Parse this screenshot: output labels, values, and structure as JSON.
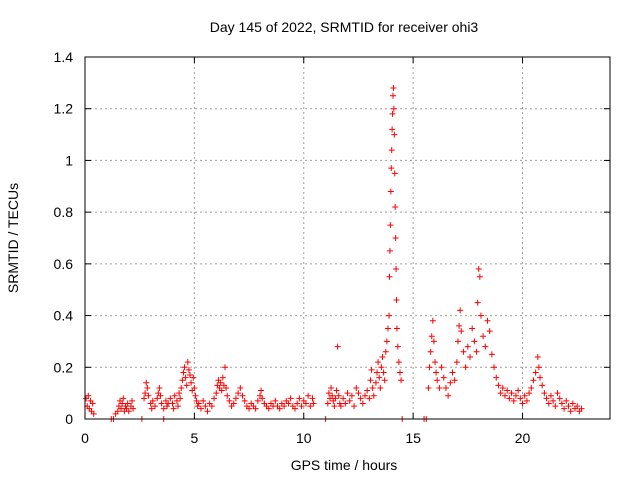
{
  "chart_data": {
    "type": "scatter",
    "title": "Day 145 of 2022, SRMTID for receiver ohi3",
    "xlabel": "GPS time / hours",
    "ylabel": "SRMTID / TECUs",
    "xlim": [
      0,
      24
    ],
    "ylim": [
      0,
      1.4
    ],
    "x_ticks": [
      0,
      5,
      10,
      15,
      20
    ],
    "x_tick_labels": [
      "0",
      "5",
      "10",
      "15",
      "20"
    ],
    "y_ticks": [
      0,
      0.2,
      0.4,
      0.6,
      0.8,
      1.0,
      1.2,
      1.4
    ],
    "y_tick_labels": [
      "0",
      "0.2",
      "0.4",
      "0.6",
      "0.8",
      "1",
      "1.2",
      "1.4"
    ],
    "grid": true,
    "marker": "+",
    "series": [
      {
        "name": "SRMTID",
        "color": "#ff0000",
        "points": [
          [
            0.05,
            0.08
          ],
          [
            0.1,
            0.05
          ],
          [
            0.15,
            0.09
          ],
          [
            0.2,
            0.04
          ],
          [
            0.25,
            0.07
          ],
          [
            0.3,
            0.03
          ],
          [
            0.35,
            0.06
          ],
          [
            0.4,
            0.02
          ],
          [
            1.2,
            0.0
          ],
          [
            1.3,
            0.0
          ],
          [
            1.4,
            0.02
          ],
          [
            1.5,
            0.03
          ],
          [
            1.55,
            0.05
          ],
          [
            1.6,
            0.07
          ],
          [
            1.65,
            0.04
          ],
          [
            1.7,
            0.06
          ],
          [
            1.75,
            0.08
          ],
          [
            1.8,
            0.03
          ],
          [
            1.85,
            0.05
          ],
          [
            1.9,
            0.04
          ],
          [
            1.95,
            0.06
          ],
          [
            2.0,
            0.03
          ],
          [
            2.1,
            0.05
          ],
          [
            2.15,
            0.07
          ],
          [
            2.2,
            0.04
          ],
          [
            2.6,
            0.0
          ],
          [
            2.7,
            0.08
          ],
          [
            2.75,
            0.1
          ],
          [
            2.8,
            0.14
          ],
          [
            2.85,
            0.12
          ],
          [
            2.9,
            0.09
          ],
          [
            3.0,
            0.06
          ],
          [
            3.05,
            0.04
          ],
          [
            3.1,
            0.07
          ],
          [
            3.2,
            0.05
          ],
          [
            3.3,
            0.08
          ],
          [
            3.35,
            0.1
          ],
          [
            3.4,
            0.12
          ],
          [
            3.45,
            0.09
          ],
          [
            3.5,
            0.06
          ],
          [
            3.6,
            0.0
          ],
          [
            3.6,
            0.04
          ],
          [
            3.7,
            0.07
          ],
          [
            3.75,
            0.05
          ],
          [
            3.8,
            0.06
          ],
          [
            3.9,
            0.08
          ],
          [
            4.0,
            0.06
          ],
          [
            4.05,
            0.04
          ],
          [
            4.1,
            0.09
          ],
          [
            4.2,
            0.07
          ],
          [
            4.25,
            0.05
          ],
          [
            4.3,
            0.1
          ],
          [
            4.35,
            0.08
          ],
          [
            4.4,
            0.12
          ],
          [
            4.45,
            0.15
          ],
          [
            4.5,
            0.18
          ],
          [
            4.55,
            0.2
          ],
          [
            4.6,
            0.16
          ],
          [
            4.65,
            0.13
          ],
          [
            4.7,
            0.22
          ],
          [
            4.75,
            0.19
          ],
          [
            4.8,
            0.17
          ],
          [
            4.85,
            0.14
          ],
          [
            4.9,
            0.11
          ],
          [
            4.95,
            0.16
          ],
          [
            5.0,
            0.12
          ],
          [
            5.05,
            0.09
          ],
          [
            5.1,
            0.07
          ],
          [
            5.15,
            0.05
          ],
          [
            5.2,
            0.06
          ],
          [
            5.3,
            0.04
          ],
          [
            5.4,
            0.07
          ],
          [
            5.5,
            0.05
          ],
          [
            5.6,
            0.03
          ],
          [
            5.7,
            0.06
          ],
          [
            5.8,
            0.05
          ],
          [
            5.9,
            0.08
          ],
          [
            6.0,
            0.1
          ],
          [
            6.05,
            0.13
          ],
          [
            6.1,
            0.15
          ],
          [
            6.15,
            0.12
          ],
          [
            6.2,
            0.14
          ],
          [
            6.25,
            0.11
          ],
          [
            6.3,
            0.16
          ],
          [
            6.35,
            0.13
          ],
          [
            6.4,
            0.2
          ],
          [
            6.45,
            0.12
          ],
          [
            6.5,
            0.09
          ],
          [
            6.6,
            0.07
          ],
          [
            6.7,
            0.05
          ],
          [
            6.8,
            0.06
          ],
          [
            6.9,
            0.08
          ],
          [
            7.0,
            0.1
          ],
          [
            7.1,
            0.12
          ],
          [
            7.2,
            0.09
          ],
          [
            7.3,
            0.07
          ],
          [
            7.4,
            0.05
          ],
          [
            7.5,
            0.04
          ],
          [
            7.6,
            0.06
          ],
          [
            7.7,
            0.05
          ],
          [
            7.8,
            0.04
          ],
          [
            7.9,
            0.07
          ],
          [
            8.0,
            0.09
          ],
          [
            8.05,
            0.11
          ],
          [
            8.1,
            0.08
          ],
          [
            8.2,
            0.06
          ],
          [
            8.3,
            0.05
          ],
          [
            8.4,
            0.04
          ],
          [
            8.5,
            0.06
          ],
          [
            8.6,
            0.05
          ],
          [
            8.7,
            0.07
          ],
          [
            8.8,
            0.05
          ],
          [
            8.9,
            0.04
          ],
          [
            9.0,
            0.06
          ],
          [
            9.1,
            0.05
          ],
          [
            9.2,
            0.07
          ],
          [
            9.3,
            0.06
          ],
          [
            9.4,
            0.08
          ],
          [
            9.5,
            0.05
          ],
          [
            9.6,
            0.04
          ],
          [
            9.7,
            0.06
          ],
          [
            9.8,
            0.08
          ],
          [
            9.9,
            0.05
          ],
          [
            10.0,
            0.07
          ],
          [
            10.1,
            0.06
          ],
          [
            10.2,
            0.09
          ],
          [
            10.3,
            0.05
          ],
          [
            10.4,
            0.08
          ],
          [
            10.45,
            0.06
          ],
          [
            11.0,
            0.0
          ],
          [
            11.1,
            0.06
          ],
          [
            11.15,
            0.1
          ],
          [
            11.2,
            0.08
          ],
          [
            11.25,
            0.12
          ],
          [
            11.3,
            0.09
          ],
          [
            11.35,
            0.07
          ],
          [
            11.4,
            0.05
          ],
          [
            11.45,
            0.08
          ],
          [
            11.5,
            0.11
          ],
          [
            11.55,
            0.28
          ],
          [
            11.6,
            0.09
          ],
          [
            11.65,
            0.06
          ],
          [
            11.7,
            0.05
          ],
          [
            11.8,
            0.08
          ],
          [
            11.9,
            0.06
          ],
          [
            12.0,
            0.1
          ],
          [
            12.1,
            0.07
          ],
          [
            12.2,
            0.09
          ],
          [
            12.3,
            0.05
          ],
          [
            12.4,
            0.12
          ],
          [
            12.5,
            0.1
          ],
          [
            12.6,
            0.08
          ],
          [
            12.7,
            0.06
          ],
          [
            12.8,
            0.09
          ],
          [
            12.9,
            0.11
          ],
          [
            13.0,
            0.08
          ],
          [
            13.05,
            0.15
          ],
          [
            13.1,
            0.19
          ],
          [
            13.15,
            0.12
          ],
          [
            13.2,
            0.09
          ],
          [
            13.3,
            0.14
          ],
          [
            13.35,
            0.18
          ],
          [
            13.4,
            0.22
          ],
          [
            13.45,
            0.16
          ],
          [
            13.5,
            0.12
          ],
          [
            13.55,
            0.2
          ],
          [
            13.6,
            0.24
          ],
          [
            13.65,
            0.18
          ],
          [
            13.7,
            0.15
          ],
          [
            13.75,
            0.26
          ],
          [
            13.8,
            0.3
          ],
          [
            13.85,
            0.35
          ],
          [
            13.9,
            0.4
          ],
          [
            13.92,
            0.55
          ],
          [
            13.94,
            0.65
          ],
          [
            13.96,
            0.75
          ],
          [
            13.98,
            0.88
          ],
          [
            14.0,
            0.97
          ],
          [
            14.02,
            1.04
          ],
          [
            14.04,
            1.12
          ],
          [
            14.06,
            1.18
          ],
          [
            14.08,
            1.25
          ],
          [
            14.1,
            1.28
          ],
          [
            14.12,
            1.2
          ],
          [
            14.14,
            1.1
          ],
          [
            14.16,
            0.95
          ],
          [
            14.18,
            0.82
          ],
          [
            14.2,
            0.7
          ],
          [
            14.22,
            0.58
          ],
          [
            14.24,
            0.46
          ],
          [
            14.26,
            0.35
          ],
          [
            14.3,
            0.28
          ],
          [
            14.35,
            0.22
          ],
          [
            14.4,
            0.18
          ],
          [
            14.45,
            0.15
          ],
          [
            14.5,
            0.0
          ],
          [
            15.5,
            0.0
          ],
          [
            15.6,
            0.0
          ],
          [
            15.7,
            0.12
          ],
          [
            15.75,
            0.2
          ],
          [
            15.8,
            0.26
          ],
          [
            15.85,
            0.32
          ],
          [
            15.9,
            0.38
          ],
          [
            15.95,
            0.3
          ],
          [
            16.0,
            0.22
          ],
          [
            16.05,
            0.18
          ],
          [
            16.1,
            0.15
          ],
          [
            16.2,
            0.12
          ],
          [
            16.3,
            0.2
          ],
          [
            16.4,
            0.16
          ],
          [
            16.5,
            0.12
          ],
          [
            16.6,
            0.09
          ],
          [
            16.7,
            0.14
          ],
          [
            16.8,
            0.18
          ],
          [
            16.9,
            0.15
          ],
          [
            17.0,
            0.22
          ],
          [
            17.05,
            0.3
          ],
          [
            17.1,
            0.36
          ],
          [
            17.15,
            0.42
          ],
          [
            17.2,
            0.34
          ],
          [
            17.3,
            0.26
          ],
          [
            17.4,
            0.2
          ],
          [
            17.5,
            0.28
          ],
          [
            17.6,
            0.24
          ],
          [
            17.7,
            0.35
          ],
          [
            17.8,
            0.3
          ],
          [
            17.9,
            0.26
          ],
          [
            17.95,
            0.45
          ],
          [
            18.0,
            0.58
          ],
          [
            18.05,
            0.55
          ],
          [
            18.1,
            0.4
          ],
          [
            18.2,
            0.32
          ],
          [
            18.3,
            0.28
          ],
          [
            18.4,
            0.38
          ],
          [
            18.5,
            0.34
          ],
          [
            18.6,
            0.25
          ],
          [
            18.7,
            0.2
          ],
          [
            18.8,
            0.16
          ],
          [
            18.9,
            0.13
          ],
          [
            19.0,
            0.1
          ],
          [
            19.1,
            0.12
          ],
          [
            19.2,
            0.09
          ],
          [
            19.3,
            0.11
          ],
          [
            19.4,
            0.08
          ],
          [
            19.5,
            0.1
          ],
          [
            19.6,
            0.07
          ],
          [
            19.7,
            0.09
          ],
          [
            19.8,
            0.11
          ],
          [
            19.9,
            0.08
          ],
          [
            20.0,
            0.06
          ],
          [
            20.1,
            0.09
          ],
          [
            20.2,
            0.07
          ],
          [
            20.3,
            0.1
          ],
          [
            20.4,
            0.12
          ],
          [
            20.5,
            0.15
          ],
          [
            20.6,
            0.18
          ],
          [
            20.7,
            0.24
          ],
          [
            20.75,
            0.2
          ],
          [
            20.8,
            0.16
          ],
          [
            20.9,
            0.13
          ],
          [
            21.0,
            0.1
          ],
          [
            21.1,
            0.08
          ],
          [
            21.2,
            0.06
          ],
          [
            21.3,
            0.09
          ],
          [
            21.4,
            0.07
          ],
          [
            21.5,
            0.05
          ],
          [
            21.6,
            0.1
          ],
          [
            21.7,
            0.08
          ],
          [
            21.8,
            0.06
          ],
          [
            21.9,
            0.04
          ],
          [
            22.0,
            0.07
          ],
          [
            22.1,
            0.05
          ],
          [
            22.2,
            0.03
          ],
          [
            22.3,
            0.06
          ],
          [
            22.4,
            0.04
          ],
          [
            22.5,
            0.05
          ],
          [
            22.6,
            0.03
          ],
          [
            22.7,
            0.04
          ]
        ]
      }
    ]
  }
}
